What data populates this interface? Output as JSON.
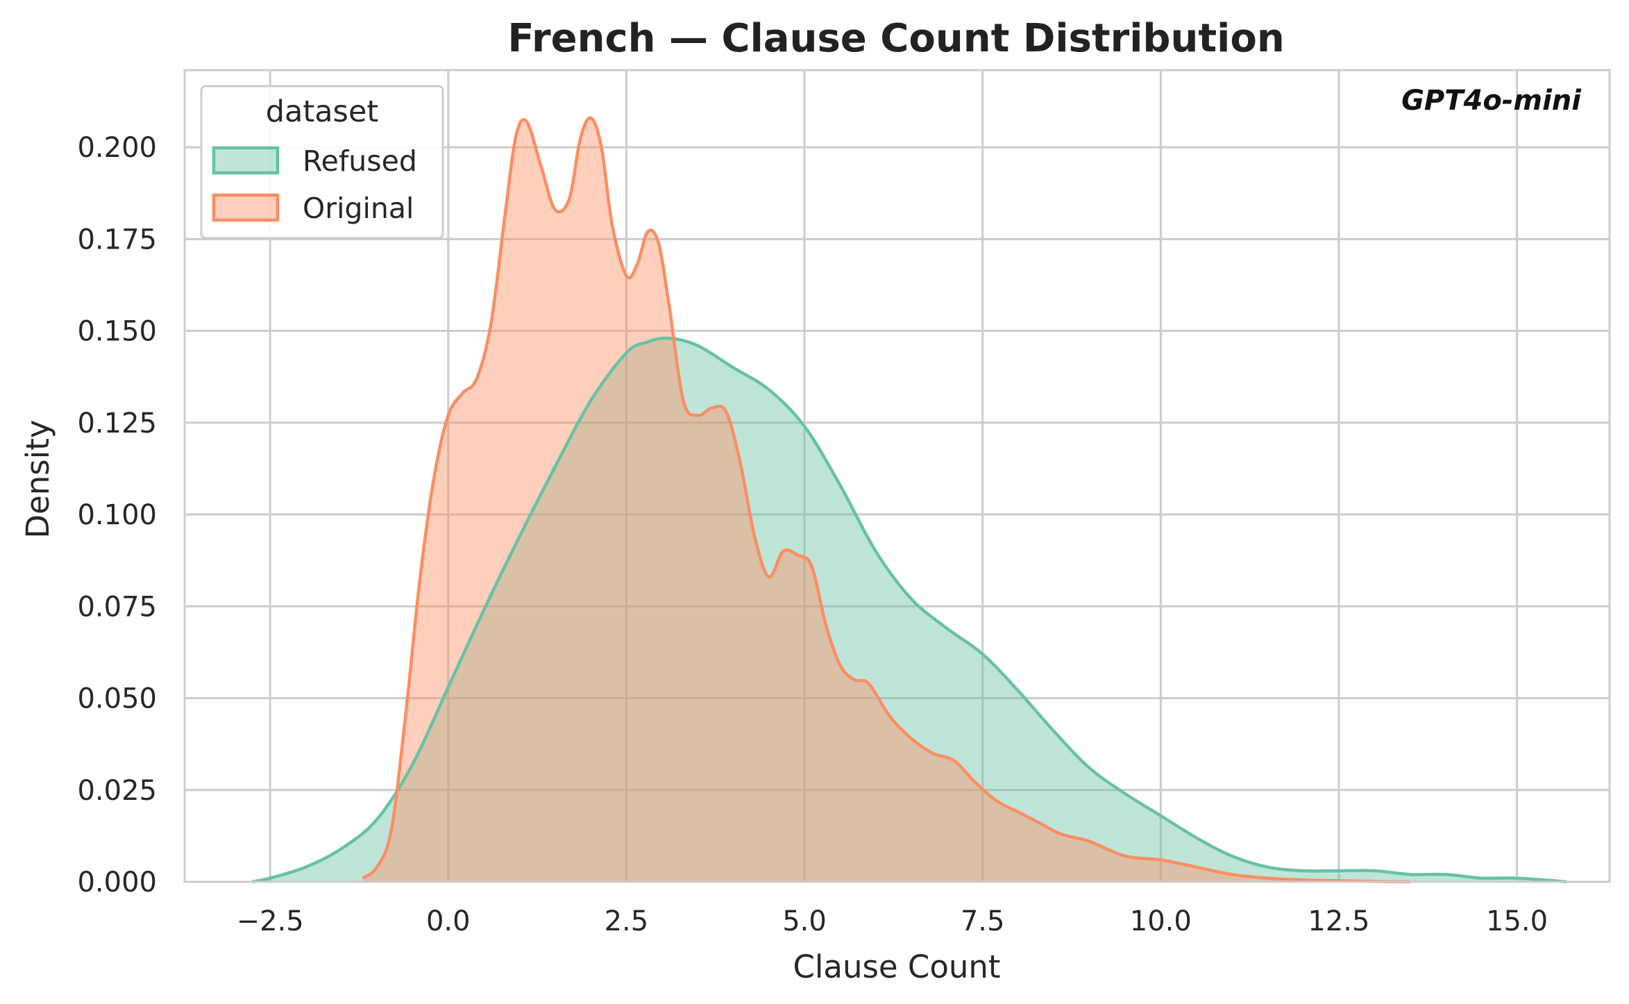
{
  "chart_data": {
    "type": "area",
    "title": "French — Clause Count Distribution",
    "xlabel": "Clause Count",
    "ylabel": "Density",
    "xlim": [
      -3.7,
      16.3
    ],
    "ylim": [
      0,
      0.221
    ],
    "x_ticks": [
      -2.5,
      0.0,
      2.5,
      5.0,
      7.5,
      10.0,
      12.5,
      15.0
    ],
    "x_tick_labels": [
      "−2.5",
      "0.0",
      "2.5",
      "5.0",
      "7.5",
      "10.0",
      "12.5",
      "15.0"
    ],
    "y_ticks": [
      0.0,
      0.025,
      0.05,
      0.075,
      0.1,
      0.125,
      0.15,
      0.175,
      0.2
    ],
    "y_tick_labels": [
      "0.000",
      "0.025",
      "0.050",
      "0.075",
      "0.100",
      "0.125",
      "0.150",
      "0.175",
      "0.200"
    ],
    "grid": true,
    "legend_title": "dataset",
    "legend_position": "upper-left",
    "annotation": "GPT4o-mini",
    "series": [
      {
        "name": "Refused",
        "color": "#66c2a5",
        "x": [
          -2.75,
          -2.5,
          -2.0,
          -1.5,
          -1.0,
          -0.5,
          0.0,
          0.5,
          1.0,
          1.5,
          2.0,
          2.5,
          2.8,
          3.1,
          3.5,
          4.0,
          4.5,
          5.0,
          5.5,
          6.0,
          6.5,
          7.0,
          7.5,
          8.0,
          8.5,
          9.0,
          9.5,
          10.0,
          10.5,
          11.0,
          11.5,
          12.0,
          12.5,
          13.0,
          13.5,
          14.0,
          14.5,
          15.0,
          15.7
        ],
        "y": [
          0.0,
          0.001,
          0.004,
          0.009,
          0.017,
          0.032,
          0.053,
          0.074,
          0.094,
          0.113,
          0.131,
          0.144,
          0.147,
          0.148,
          0.146,
          0.14,
          0.134,
          0.124,
          0.108,
          0.09,
          0.077,
          0.069,
          0.062,
          0.052,
          0.041,
          0.031,
          0.024,
          0.018,
          0.012,
          0.007,
          0.004,
          0.003,
          0.003,
          0.003,
          0.002,
          0.002,
          0.001,
          0.001,
          0.0
        ]
      },
      {
        "name": "Original",
        "color": "#fc8d62",
        "x": [
          -1.2,
          -1.0,
          -0.8,
          -0.6,
          -0.4,
          -0.2,
          0.0,
          0.2,
          0.4,
          0.6,
          0.8,
          0.95,
          1.1,
          1.3,
          1.5,
          1.7,
          1.85,
          2.0,
          2.15,
          2.3,
          2.5,
          2.65,
          2.8,
          2.95,
          3.1,
          3.3,
          3.5,
          3.7,
          3.9,
          4.1,
          4.3,
          4.5,
          4.7,
          4.9,
          5.1,
          5.3,
          5.5,
          5.7,
          5.9,
          6.2,
          6.5,
          6.8,
          7.1,
          7.4,
          7.7,
          8.0,
          8.3,
          8.6,
          9.0,
          9.5,
          10.0,
          10.5,
          11.0,
          11.5,
          12.0,
          12.5,
          13.0,
          13.5
        ],
        "y": [
          0.001,
          0.004,
          0.014,
          0.045,
          0.082,
          0.11,
          0.127,
          0.133,
          0.137,
          0.152,
          0.182,
          0.203,
          0.207,
          0.195,
          0.183,
          0.186,
          0.202,
          0.208,
          0.2,
          0.179,
          0.165,
          0.168,
          0.177,
          0.174,
          0.157,
          0.131,
          0.127,
          0.129,
          0.128,
          0.114,
          0.094,
          0.083,
          0.09,
          0.089,
          0.086,
          0.07,
          0.059,
          0.055,
          0.054,
          0.045,
          0.039,
          0.035,
          0.033,
          0.027,
          0.022,
          0.019,
          0.016,
          0.013,
          0.011,
          0.007,
          0.006,
          0.004,
          0.002,
          0.001,
          0.0005,
          0.0003,
          0.0001,
          0.0
        ]
      }
    ]
  }
}
